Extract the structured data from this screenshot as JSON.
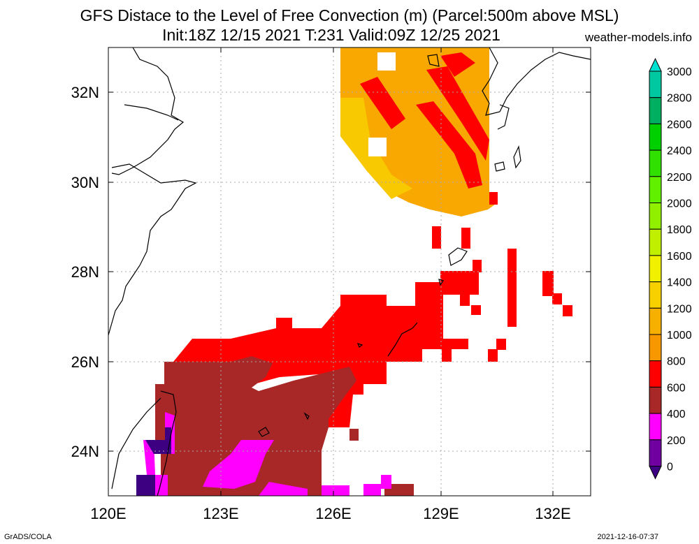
{
  "header": {
    "title_line1": "GFS Distace to the Level of Free Convection (m) (Parcel:500m above MSL)",
    "title_line2": "Init:18Z 12/15 2021 T:231 Valid:09Z 12/25 2021",
    "site": "weather-models.info"
  },
  "footer": {
    "left": "GrADS/COLA",
    "right": "2021-12-16-07:37"
  },
  "map": {
    "lat_labels": [
      "32N",
      "30N",
      "28N",
      "26N",
      "24N"
    ],
    "lon_labels": [
      "120E",
      "123E",
      "126E",
      "129E",
      "132E"
    ]
  },
  "colorbar": {
    "levels": [
      "3000",
      "2800",
      "2600",
      "2400",
      "2200",
      "2000",
      "1800",
      "1600",
      "1400",
      "1200",
      "1000",
      "800",
      "600",
      "400",
      "200",
      "0"
    ],
    "colors": [
      "#00e0d0",
      "#00c8a0",
      "#00b060",
      "#00d000",
      "#30e000",
      "#60f000",
      "#90f000",
      "#c0f000",
      "#f0f000",
      "#f8d000",
      "#f8b000",
      "#f89800",
      "#ff0000",
      "#a82828",
      "#ff00ff",
      "#7000a0",
      "#3c0080"
    ]
  }
}
